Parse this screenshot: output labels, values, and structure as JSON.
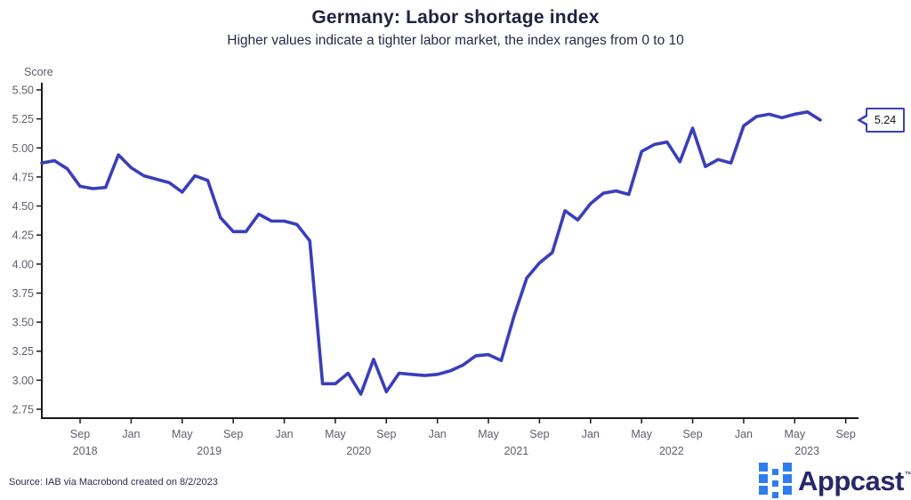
{
  "header": {
    "title": "Germany: Labor shortage index",
    "subtitle": "Higher values indicate a tighter labor market, the index ranges from 0 to 10"
  },
  "chart_data": {
    "type": "line",
    "title": "Germany: Labor shortage index",
    "subtitle": "Higher values indicate a tighter labor market, the index ranges from 0 to 10",
    "ylabel": "Score",
    "ylim": [
      2.75,
      5.5
    ],
    "yticks": [
      5.5,
      5.25,
      5.0,
      4.75,
      4.5,
      4.25,
      4.0,
      3.75,
      3.5,
      3.25,
      3.0,
      2.75
    ],
    "x_start_month": "2018-06",
    "x_end_month": "2023-07",
    "xtick_month_labels": [
      "Sep",
      "Jan",
      "May",
      "Sep",
      "Jan",
      "May",
      "Sep",
      "Jan",
      "May",
      "Sep",
      "Jan",
      "May",
      "Sep",
      "Jan",
      "May",
      "Sep"
    ],
    "year_labels": [
      "2018",
      "2019",
      "2020",
      "2021",
      "2022",
      "2023"
    ],
    "grid": false,
    "legend": "none",
    "line_color": "#3a3eba",
    "series": [
      {
        "name": "Labor shortage index",
        "values": [
          4.87,
          4.89,
          4.82,
          4.67,
          4.65,
          4.66,
          4.94,
          4.83,
          4.76,
          4.73,
          4.7,
          4.62,
          4.76,
          4.72,
          4.4,
          4.28,
          4.28,
          4.43,
          4.37,
          4.37,
          4.34,
          4.2,
          2.97,
          2.97,
          3.06,
          2.88,
          3.18,
          2.9,
          3.06,
          3.05,
          3.04,
          3.05,
          3.08,
          3.13,
          3.21,
          3.22,
          3.17,
          3.55,
          3.88,
          4.01,
          4.1,
          4.46,
          4.38,
          4.52,
          4.61,
          4.63,
          4.6,
          4.97,
          5.03,
          5.05,
          4.88,
          5.17,
          4.84,
          4.9,
          4.87,
          5.19,
          5.27,
          5.29,
          5.26,
          5.29,
          5.31,
          5.24
        ]
      }
    ],
    "last_value_label": "5.24"
  },
  "footer": {
    "source": "Source: IAB via Macrobond created on 8/2/2023"
  },
  "logo": {
    "text": "Appcast",
    "tm": "™"
  }
}
